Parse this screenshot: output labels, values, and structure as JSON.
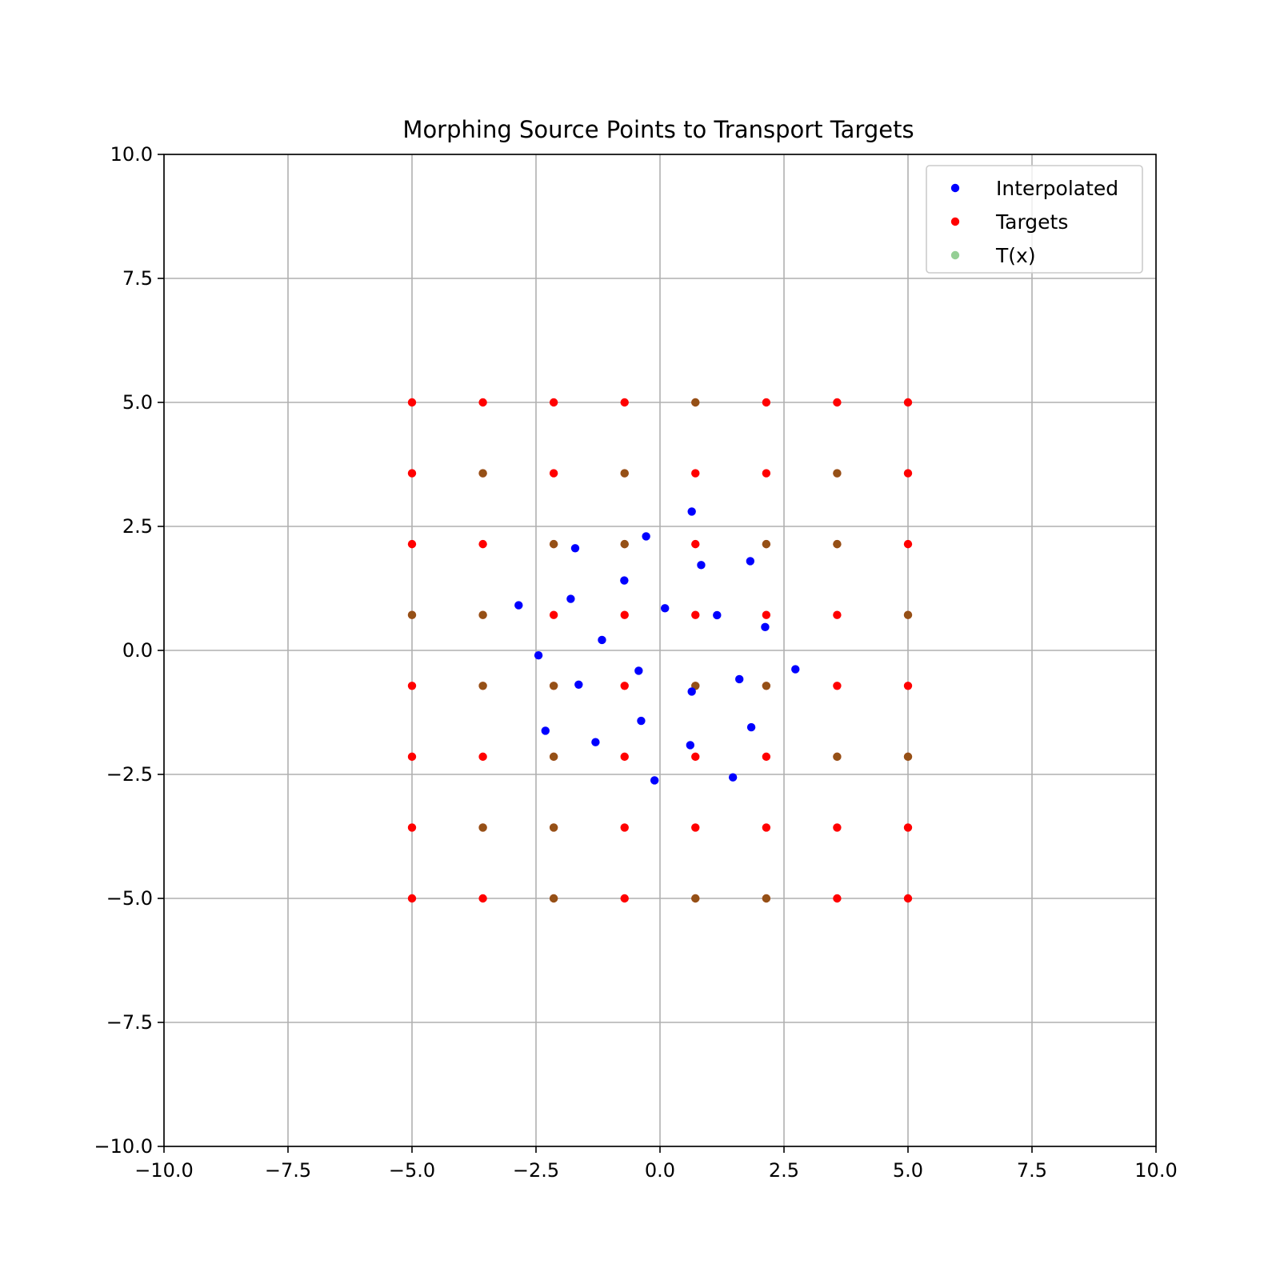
{
  "chart_data": {
    "type": "scatter",
    "title": "Morphing Source Points to Transport Targets",
    "xlabel": "",
    "ylabel": "",
    "xlim": [
      -10,
      10
    ],
    "ylim": [
      -10,
      10
    ],
    "grid": true,
    "legend_position": "top-right",
    "x_ticks": [
      -10,
      -7.5,
      -5,
      -2.5,
      0,
      2.5,
      5,
      7.5,
      10
    ],
    "y_ticks": [
      -10,
      -7.5,
      -5,
      -2.5,
      0,
      2.5,
      5,
      7.5,
      10
    ],
    "x_tick_labels": [
      "−10.0",
      "−7.5",
      "−5.0",
      "−2.5",
      "0.0",
      "2.5",
      "5.0",
      "7.5",
      "10.0"
    ],
    "y_tick_labels": [
      "−10.0",
      "−7.5",
      "−5.0",
      "−2.5",
      "0.0",
      "2.5",
      "5.0",
      "7.5",
      "10.0"
    ],
    "grid_levels": [
      -5.0,
      -3.571,
      -2.143,
      -0.714,
      0.714,
      2.143,
      3.571,
      5.0
    ],
    "series": [
      {
        "name": "Interpolated",
        "color": "#0000ff",
        "points": [
          [
            0.64,
            2.8
          ],
          [
            -0.28,
            2.3
          ],
          [
            -1.71,
            2.06
          ],
          [
            0.83,
            1.72
          ],
          [
            1.82,
            1.8
          ],
          [
            -0.72,
            1.41
          ],
          [
            -1.8,
            1.04
          ],
          [
            -2.85,
            0.91
          ],
          [
            0.1,
            0.85
          ],
          [
            1.15,
            0.71
          ],
          [
            2.12,
            0.47
          ],
          [
            -1.17,
            0.21
          ],
          [
            -2.45,
            -0.1
          ],
          [
            -0.43,
            -0.41
          ],
          [
            2.73,
            -0.38
          ],
          [
            1.6,
            -0.58
          ],
          [
            -1.64,
            -0.69
          ],
          [
            0.64,
            -0.83
          ],
          [
            -0.38,
            -1.42
          ],
          [
            1.84,
            -1.55
          ],
          [
            -2.31,
            -1.62
          ],
          [
            -1.3,
            -1.85
          ],
          [
            0.61,
            -1.91
          ],
          [
            -0.11,
            -2.62
          ],
          [
            1.47,
            -2.56
          ]
        ]
      },
      {
        "name": "Targets",
        "color": "#ff0000",
        "points": "grid_levels x grid_levels (all 64 grid points)"
      },
      {
        "name": "T(x)",
        "color": "#2ca02c",
        "alpha": 0.5,
        "points": [
          [
            0.714,
            5.0
          ],
          [
            -3.571,
            3.571
          ],
          [
            -0.714,
            3.571
          ],
          [
            3.571,
            3.571
          ],
          [
            -2.143,
            2.143
          ],
          [
            -0.714,
            2.143
          ],
          [
            2.143,
            2.143
          ],
          [
            3.571,
            2.143
          ],
          [
            -5.0,
            0.714
          ],
          [
            -3.571,
            0.714
          ],
          [
            5.0,
            0.714
          ],
          [
            -3.571,
            -0.714
          ],
          [
            -2.143,
            -0.714
          ],
          [
            0.714,
            -0.714
          ],
          [
            2.143,
            -0.714
          ],
          [
            -2.143,
            -2.143
          ],
          [
            3.571,
            -2.143
          ],
          [
            5.0,
            -2.143
          ],
          [
            -3.571,
            -3.571
          ],
          [
            -2.143,
            -3.571
          ],
          [
            -2.143,
            -5.0
          ],
          [
            0.714,
            -5.0
          ],
          [
            2.143,
            -5.0
          ]
        ]
      }
    ]
  }
}
